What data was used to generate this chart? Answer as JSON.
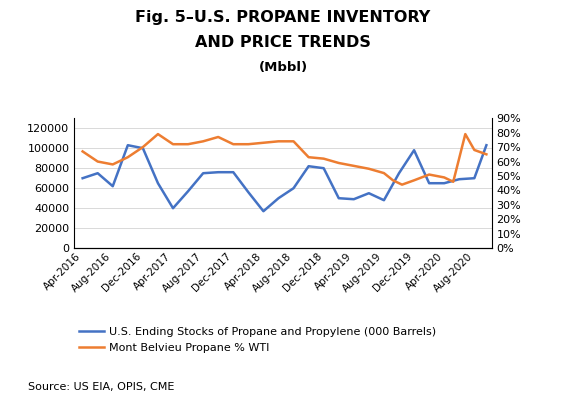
{
  "title_line1": "Fig. 5–U.S. PROPANE INVENTORY",
  "title_line2": "AND PRICE TRENDS",
  "title_line3": "(Mbbl)",
  "source_text": "Source: US EIA, OPIS, CME",
  "legend_blue": "U.S. Ending Stocks of Propane and Propylene (000 Barrels)",
  "legend_orange": "Mont Belvieu Propane % WTI",
  "x_labels": [
    "Apr-2016",
    "Aug-2016",
    "Dec-2016",
    "Apr-2017",
    "Aug-2017",
    "Dec-2017",
    "Apr-2018",
    "Aug-2018",
    "Dec-2018",
    "Apr-2019",
    "Aug-2019",
    "Dec-2019",
    "Apr-2020",
    "Aug-2020"
  ],
  "blue_x": [
    0,
    0.5,
    1,
    1.5,
    2,
    2.5,
    3,
    3.5,
    4,
    4.5,
    5,
    5.5,
    6,
    6.5,
    7,
    7.5,
    8,
    8.5,
    9,
    9.5,
    10,
    10.5,
    11,
    11.5,
    12,
    12.5,
    13,
    13.4
  ],
  "blue_y": [
    70000,
    75000,
    62000,
    103000,
    100000,
    65000,
    40000,
    57000,
    75000,
    76000,
    76000,
    56000,
    37000,
    50000,
    60000,
    82000,
    80000,
    50000,
    49000,
    55000,
    48000,
    75000,
    98000,
    65000,
    65000,
    69000,
    70000,
    103000
  ],
  "orange_x": [
    0,
    0.5,
    1,
    1.5,
    2,
    2.5,
    3,
    3.5,
    4,
    4.5,
    5,
    5.5,
    6,
    6.5,
    7,
    7.5,
    8,
    8.5,
    9,
    9.5,
    10,
    10.3,
    10.6,
    11,
    11.5,
    12,
    12.3,
    12.7,
    13,
    13.4
  ],
  "orange_y": [
    67,
    60,
    58,
    63,
    70,
    79,
    72,
    72,
    74,
    77,
    72,
    72,
    73,
    74,
    74,
    63,
    62,
    59,
    57,
    55,
    52,
    47,
    44,
    47,
    51,
    49,
    46,
    79,
    68,
    65
  ],
  "blue_color": "#4472C4",
  "orange_color": "#ED7D31",
  "background_color": "#FFFFFF",
  "grid_color": "#D9D9D9",
  "title_fontsize": 11.5,
  "legend_fontsize": 8.0,
  "tick_fontsize": 8.0,
  "source_fontsize": 8.0
}
